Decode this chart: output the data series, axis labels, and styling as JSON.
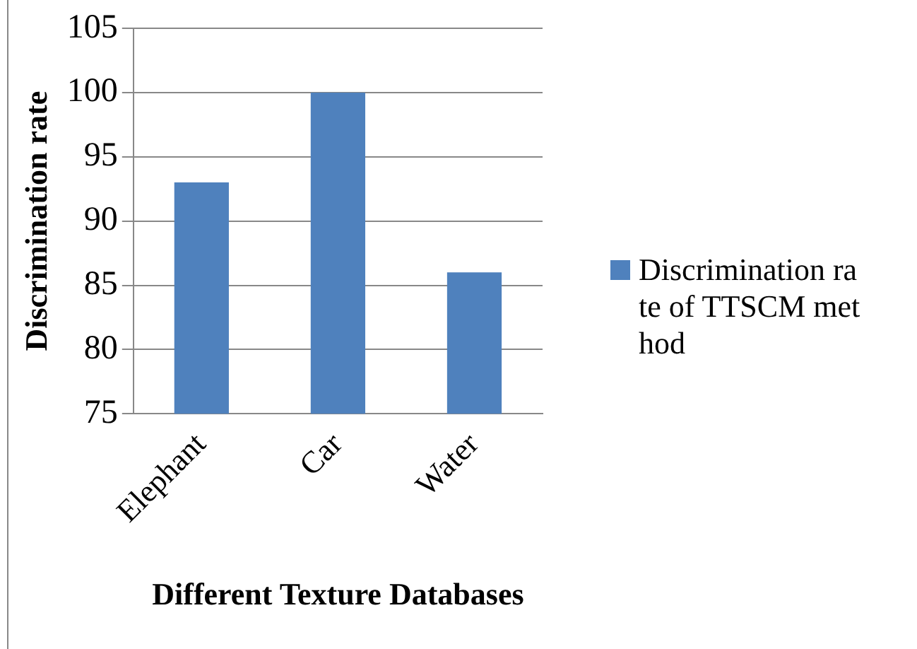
{
  "chart_data": {
    "type": "bar",
    "xlabel": "Different Texture Databases",
    "ylabel": "Discrimination rate",
    "categories": [
      "Elephant",
      "Car",
      "Water"
    ],
    "series": [
      {
        "name": "Discrimination rate of TTSCM method",
        "color": "#4f81bd",
        "values": [
          93,
          100,
          86
        ]
      }
    ],
    "ylim": [
      75,
      105
    ],
    "yticks": [
      75,
      80,
      85,
      90,
      95,
      100,
      105
    ],
    "grid": "y",
    "legend": "right"
  }
}
